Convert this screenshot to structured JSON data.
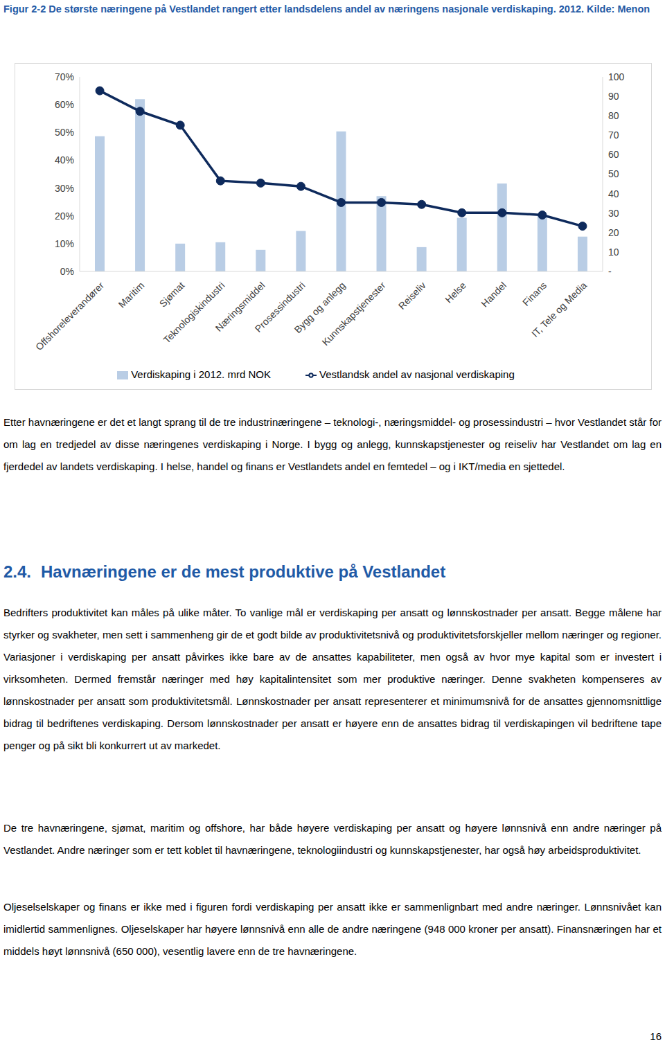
{
  "chart_data": {
    "type": "bar",
    "title": "Figur 2-2 De største næringene på Vestlandet rangert etter landsdelens andel av næringens nasjonale verdiskaping. 2012. Kilde: Menon",
    "categories": [
      "Offshoreleverandører",
      "Maritim",
      "Sjømat",
      "Teknologiskindustri",
      "Næringsmiddel",
      "Prosessindustri",
      "Bygg og anlegg",
      "Kunnskapstjenester",
      "Reiseliv",
      "Helse",
      "Handel",
      "Finans",
      "IT, Tele og Media"
    ],
    "series": [
      {
        "name": "Verdiskaping i 2012. mrd NOK",
        "type": "bar",
        "color": "#b9cde5",
        "axis": "y2",
        "values": [
          69.5,
          88.5,
          14.3,
          15,
          11.1,
          20.8,
          72,
          38.7,
          12.5,
          27.6,
          45.2,
          28.7,
          17.9
        ]
      },
      {
        "name": "Vestlandsk andel av nasjonal verdiskaping",
        "type": "line",
        "color": "#0e2a5c",
        "marker": "circle",
        "values": [
          65,
          57.6,
          52.6,
          32.6,
          31.8,
          30.6,
          24.8,
          24.8,
          24.1,
          21.1,
          21.1,
          20.3,
          16.3
        ]
      }
    ],
    "ylim": [
      0,
      70
    ],
    "yticks": [
      {
        "value": 0,
        "label": "0%"
      },
      {
        "value": 10,
        "label": "10%"
      },
      {
        "value": 20,
        "label": "20%"
      },
      {
        "value": 30,
        "label": "30%"
      },
      {
        "value": 40,
        "label": "40%"
      },
      {
        "value": 50,
        "label": "50%"
      },
      {
        "value": 60,
        "label": "60%"
      },
      {
        "value": 70,
        "label": "70%"
      }
    ],
    "y2lim": [
      0,
      100
    ],
    "y2ticks": [
      {
        "value": 0,
        "label": "-"
      },
      10,
      20,
      30,
      40,
      50,
      60,
      70,
      80,
      90,
      100
    ],
    "grid": false,
    "legend": "bottom"
  },
  "document": {
    "paragraph_1": "Etter havnæringene er det et langt sprang til de tre industrinæringene – teknologi-, næringsmiddel- og prosessindustri – hvor Vestlandet står for om lag en tredjedel av disse næringenes verdiskaping i Norge. I bygg og anlegg, kunnskapstjenester og reiseliv har Vestlandet om lag en fjerdedel av landets verdiskaping. I helse, handel og finans er Vestlandets andel en femtedel – og i IKT/media en sjettedel.",
    "section": {
      "number": "2.4.",
      "title": "Havnæringene er de mest produktive på Vestlandet"
    },
    "paragraphs": [
      "Bedrifters produktivitet kan måles på ulike måter. To vanlige mål er verdiskaping per ansatt og lønnskostnader per ansatt. Begge målene har styrker og svakheter, men sett i sammenheng gir de et godt bilde av produktivitetsnivå og produktivitetsforskjeller mellom næringer og regioner. Variasjoner i verdiskaping per ansatt påvirkes ikke bare av de ansattes kapabiliteter, men også av hvor mye kapital som er investert i virksomheten. Dermed fremstår næringer med høy kapitalintensitet som mer produktive næringer. Denne svakheten kompenseres av lønnskostnader per ansatt som produktivitetsmål. Lønnskostnader per ansatt representerer et minimumsnivå for de ansattes gjennomsnittlige bidrag til bedriftenes verdiskaping. Dersom lønnskostnader per ansatt er høyere enn de ansattes bidrag til verdiskapingen vil bedriftene tape penger og på sikt bli konkurrert ut av markedet.",
      "De tre havnæringene, sjømat, maritim og offshore, har både høyere verdiskaping per ansatt og høyere lønnsnivå enn andre næringer på Vestlandet. Andre næringer som er tett koblet til havnæringene, teknologiindustri og kunnskapstjenester, har også høy arbeidsproduktivitet.",
      "Oljeselselskaper og finans er ikke med i figuren fordi verdiskaping per ansatt ikke er sammenlignbart med andre næringer. Lønnsnivået kan imidlertid sammenlignes. Oljeselskaper har høyere lønnsnivå enn alle de andre næringene (948 000 kroner per ansatt). Finansnæringen har et middels høyt lønnsnivå (650 000), vesentlig lavere enn de tre havnæringene."
    ],
    "page_number": "16"
  }
}
